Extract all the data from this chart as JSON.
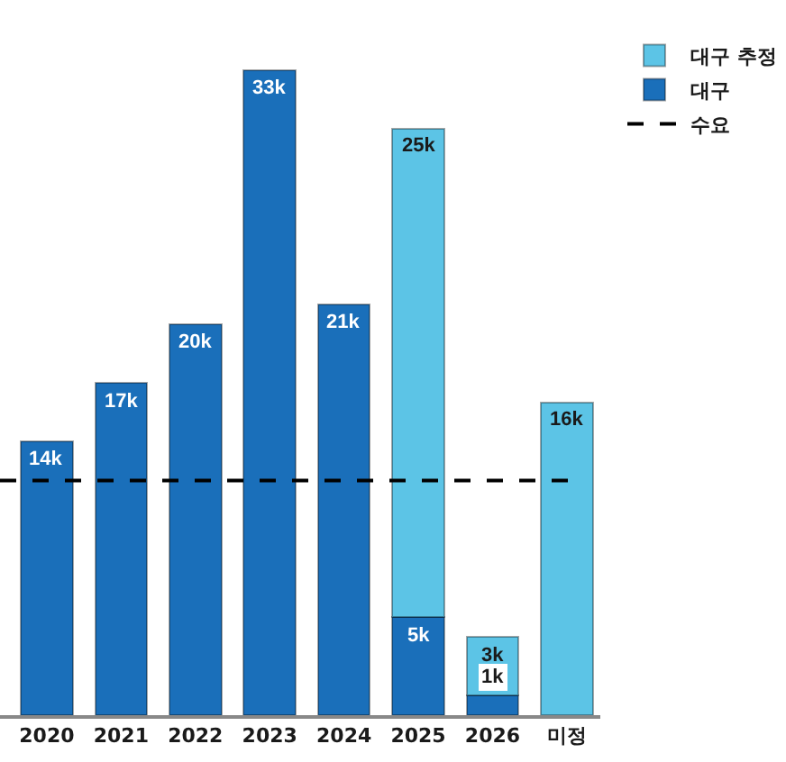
{
  "chart_data": {
    "type": "bar",
    "stacked": true,
    "categories": [
      "2020",
      "2021",
      "2022",
      "2023",
      "2024",
      "2025",
      "2026",
      "미정"
    ],
    "series": [
      {
        "name": "대구",
        "color": "#1a6fba",
        "values": [
          14,
          17,
          20,
          33,
          21,
          5,
          1,
          null
        ],
        "value_labels": [
          "14k",
          "17k",
          "20k",
          "33k",
          "21k",
          "5k",
          "1k",
          null
        ]
      },
      {
        "name": "대구 추정",
        "color": "#5cc4e6",
        "values": [
          null,
          null,
          null,
          null,
          null,
          25,
          3,
          16
        ],
        "value_labels": [
          null,
          null,
          null,
          null,
          null,
          "25k",
          "3k",
          "16k"
        ]
      }
    ],
    "ref_lines": [
      {
        "axis": "y",
        "value": 12,
        "label": "수요",
        "color": "#000000",
        "line_style": "dashed"
      }
    ],
    "legend": "top right",
    "grid": false
  }
}
